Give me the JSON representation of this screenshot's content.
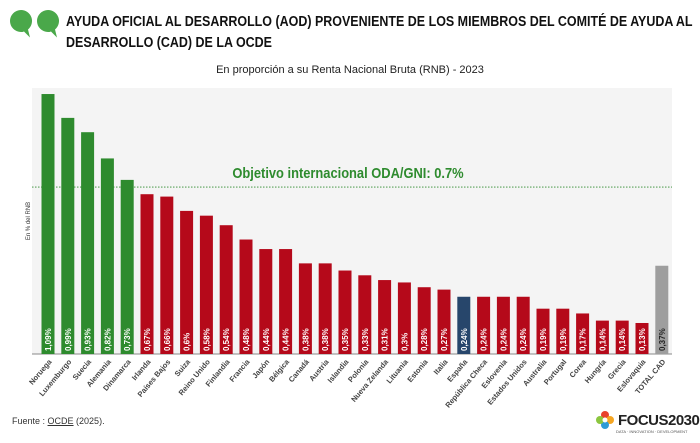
{
  "header": {
    "title": "AYUDA OFICIAL AL DESARROLLO (AOD) PROVENIENTE DE LOS MIEMBROS DEL COMITÉ DE AYUDA AL DESARROLLO (CAD) DE LA OCDE",
    "subtitle": "En proporción a su Renta Nacional Bruta (RNB) - 2023"
  },
  "footer": {
    "source_prefix": "Fuente : ",
    "source_link": "OCDE",
    "source_suffix": " (2025).",
    "brand": "FOCUS2030",
    "brand_tagline": "DATA · INNOVATION · DEVELOPMENT"
  },
  "chart_data": {
    "type": "bar",
    "title": "",
    "ylabel": "En % del RNB",
    "ylim": [
      0,
      1.12
    ],
    "grid": false,
    "target": {
      "value": 0.7,
      "label": "Objetivo internacional ODA/GNI: 0.7%",
      "color": "#2e8b2e"
    },
    "categories": [
      "Noruega",
      "Luxemburgo",
      "Suecia",
      "Alemania",
      "Dinamarca",
      "Irlanda",
      "Países Bajos",
      "Suiza",
      "Reino Unido",
      "Finlandia",
      "Francia",
      "Japón",
      "Bélgica",
      "Canadá",
      "Austria",
      "Islandia",
      "Polonia",
      "Nueva Zelanda",
      "Lituania",
      "Estonia",
      "Italia",
      "España",
      "República Checa",
      "Eslovenia",
      "Estados Unidos",
      "Australia",
      "Portugal",
      "Corea",
      "Hungría",
      "Grecia",
      "Eslovaquia",
      "TOTAL CAD"
    ],
    "values": [
      1.09,
      0.99,
      0.93,
      0.82,
      0.73,
      0.67,
      0.66,
      0.6,
      0.58,
      0.54,
      0.48,
      0.44,
      0.44,
      0.38,
      0.38,
      0.35,
      0.33,
      0.31,
      0.3,
      0.28,
      0.27,
      0.24,
      0.24,
      0.24,
      0.24,
      0.19,
      0.19,
      0.17,
      0.14,
      0.14,
      0.13,
      0.37
    ],
    "data_labels": [
      "1,09%",
      "0,99%",
      "0,93%",
      "0,82%",
      "0,73%",
      "0,67%",
      "0,66%",
      "0,6%",
      "0,58%",
      "0,54%",
      "0,48%",
      "0,44%",
      "0,44%",
      "0,38%",
      "0,38%",
      "0,35%",
      "0,33%",
      "0,31%",
      "0,3%",
      "0,28%",
      "0,27%",
      "0,24%",
      "0,24%",
      "0,24%",
      "0,24%",
      "0,19%",
      "0,19%",
      "0,17%",
      "0,14%",
      "0,14%",
      "0,13%",
      "0,37%"
    ],
    "colors": {
      "above_target": "#2e8b2e",
      "below_target": "#b5091a",
      "highlight": "#27466b",
      "total": "#9e9e9e"
    },
    "highlight": "España"
  }
}
